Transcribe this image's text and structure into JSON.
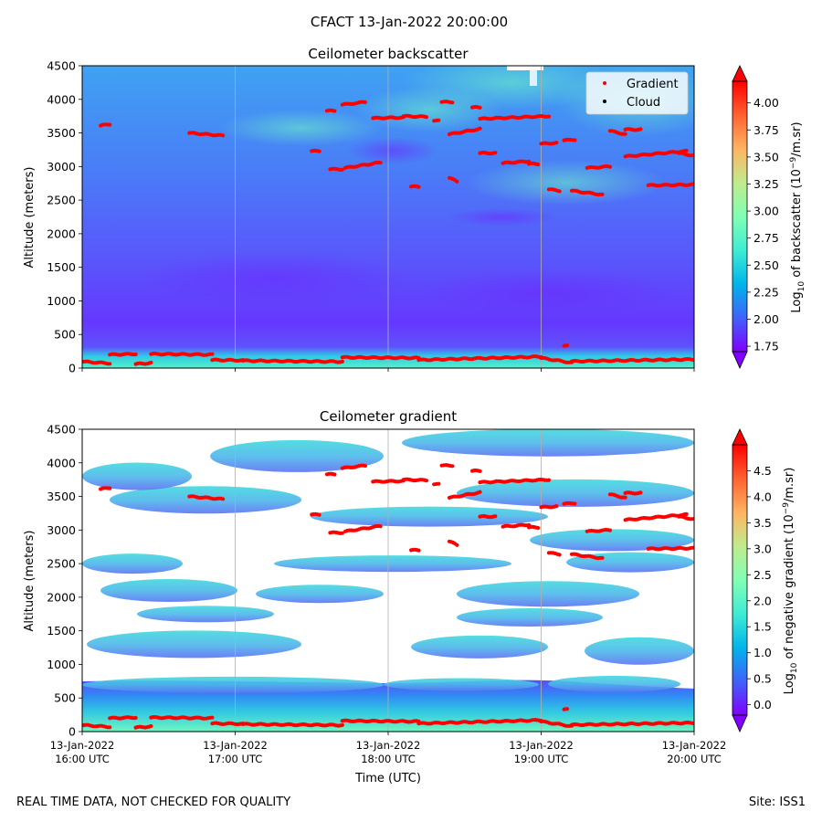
{
  "figure": {
    "suptitle": "CFACT 13-Jan-2022 20:00:00",
    "footer_left": "REAL TIME DATA, NOT CHECKED FOR QUALITY",
    "footer_right": "Site: ISS1"
  },
  "chart_data": [
    {
      "type": "heatmap",
      "title": "Ceilometer backscatter",
      "ylabel": "Altitude (meters)",
      "xlabel": "",
      "ylim": [
        0,
        4500
      ],
      "xlim": [
        0,
        4
      ],
      "y_ticks": [
        "0",
        "500",
        "1000",
        "1500",
        "2000",
        "2500",
        "3000",
        "3500",
        "4000",
        "4500"
      ],
      "x_tick_labels": [],
      "colorbar": {
        "label_prefix": "Log",
        "label_sub": "10",
        "label_mid": " of backscatter (10",
        "label_sup": "−9",
        "label_suffix": "/m.sr)",
        "range": [
          1.7,
          4.2
        ],
        "ticks": [
          "1.75",
          "2.00",
          "2.25",
          "2.50",
          "2.75",
          "3.00",
          "3.25",
          "3.50",
          "3.75",
          "4.00"
        ]
      },
      "legend": {
        "position": "top-right",
        "entries": [
          {
            "label": "Gradient",
            "color": "#ff0000"
          },
          {
            "label": "Cloud",
            "color": "#000000"
          }
        ]
      },
      "gradient_layers": [
        {
          "x": [
            0.01,
            0.18
          ],
          "y": [
            95,
            70
          ]
        },
        {
          "x": [
            0.18,
            0.35
          ],
          "y": [
            200,
            210
          ]
        },
        {
          "x": [
            0.35,
            0.45
          ],
          "y": [
            60,
            75
          ]
        },
        {
          "x": [
            0.45,
            0.85
          ],
          "y": [
            210,
            200
          ]
        },
        {
          "x": [
            0.85,
            1.05
          ],
          "y": [
            120,
            115
          ]
        },
        {
          "x": [
            1.05,
            1.7
          ],
          "y": [
            110,
            95
          ]
        },
        {
          "x": [
            1.7,
            2.2
          ],
          "y": [
            160,
            150
          ]
        },
        {
          "x": [
            2.2,
            3.0
          ],
          "y": [
            120,
            170
          ]
        },
        {
          "x": [
            3.0,
            3.2
          ],
          "y": [
            150,
            80
          ]
        },
        {
          "x": [
            3.2,
            4.0
          ],
          "y": [
            100,
            130
          ]
        },
        {
          "x": [
            3.15,
            3.17
          ],
          "y": [
            330,
            330
          ]
        },
        {
          "x": [
            0.12,
            0.18
          ],
          "y": [
            3610,
            3630
          ]
        },
        {
          "x": [
            0.7,
            0.92
          ],
          "y": [
            3500,
            3460
          ]
        },
        {
          "x": [
            1.5,
            1.55
          ],
          "y": [
            3230,
            3230
          ]
        },
        {
          "x": [
            1.62,
            1.7
          ],
          "y": [
            2960,
            2960
          ]
        },
        {
          "x": [
            1.72,
            1.95
          ],
          "y": [
            2980,
            3060
          ]
        },
        {
          "x": [
            1.6,
            1.65
          ],
          "y": [
            3830,
            3830
          ]
        },
        {
          "x": [
            1.7,
            1.85
          ],
          "y": [
            3920,
            3960
          ]
        },
        {
          "x": [
            1.9,
            2.1
          ],
          "y": [
            3720,
            3730
          ]
        },
        {
          "x": [
            2.1,
            2.25
          ],
          "y": [
            3750,
            3740
          ]
        },
        {
          "x": [
            2.3,
            2.33
          ],
          "y": [
            3680,
            3680
          ]
        },
        {
          "x": [
            2.35,
            2.42
          ],
          "y": [
            3960,
            3960
          ]
        },
        {
          "x": [
            2.4,
            2.6
          ],
          "y": [
            3480,
            3560
          ]
        },
        {
          "x": [
            2.15,
            2.2
          ],
          "y": [
            2700,
            2700
          ]
        },
        {
          "x": [
            2.4,
            2.45
          ],
          "y": [
            2830,
            2780
          ]
        },
        {
          "x": [
            2.55,
            2.6
          ],
          "y": [
            3880,
            3880
          ]
        },
        {
          "x": [
            2.6,
            3.05
          ],
          "y": [
            3710,
            3750
          ]
        },
        {
          "x": [
            2.6,
            2.7
          ],
          "y": [
            3200,
            3200
          ]
        },
        {
          "x": [
            2.75,
            2.92
          ],
          "y": [
            3050,
            3080
          ]
        },
        {
          "x": [
            2.92,
            2.98
          ],
          "y": [
            3040,
            3040
          ]
        },
        {
          "x": [
            3.0,
            3.1
          ],
          "y": [
            3340,
            3350
          ]
        },
        {
          "x": [
            3.05,
            3.12
          ],
          "y": [
            2660,
            2640
          ]
        },
        {
          "x": [
            3.15,
            3.22
          ],
          "y": [
            3390,
            3400
          ]
        },
        {
          "x": [
            3.2,
            3.4
          ],
          "y": [
            2640,
            2580
          ]
        },
        {
          "x": [
            3.3,
            3.45
          ],
          "y": [
            2980,
            3000
          ]
        },
        {
          "x": [
            3.45,
            3.55
          ],
          "y": [
            3530,
            3480
          ]
        },
        {
          "x": [
            3.55,
            3.65
          ],
          "y": [
            3550,
            3550
          ]
        },
        {
          "x": [
            3.55,
            3.95
          ],
          "y": [
            3150,
            3230
          ]
        },
        {
          "x": [
            3.7,
            4.0
          ],
          "y": [
            2720,
            2730
          ]
        },
        {
          "x": [
            3.9,
            4.0
          ],
          "y": [
            3200,
            3160
          ]
        }
      ]
    },
    {
      "type": "heatmap",
      "title": "Ceilometer gradient",
      "ylabel": "Altitude (meters)",
      "xlabel": "Time (UTC)",
      "ylim": [
        0,
        4500
      ],
      "xlim": [
        0,
        4
      ],
      "y_ticks": [
        "0",
        "500",
        "1000",
        "1500",
        "2000",
        "2500",
        "3000",
        "3500",
        "4000",
        "4500"
      ],
      "x_tick_labels": [
        [
          "13-Jan-2022",
          "16:00 UTC"
        ],
        [
          "13-Jan-2022",
          "17:00 UTC"
        ],
        [
          "13-Jan-2022",
          "18:00 UTC"
        ],
        [
          "13-Jan-2022",
          "19:00 UTC"
        ],
        [
          "13-Jan-2022",
          "20:00 UTC"
        ]
      ],
      "colorbar": {
        "label_prefix": "Log",
        "label_sub": "10",
        "label_mid": " of negative gradient (10",
        "label_sup": "−9",
        "label_suffix": "/m.sr)",
        "range": [
          -0.2,
          5.0
        ],
        "ticks": [
          "0.0",
          "0.5",
          "1.0",
          "1.5",
          "2.0",
          "2.5",
          "3.0",
          "3.5",
          "4.0",
          "4.5"
        ]
      },
      "gradient_layers": "same as panel 1"
    }
  ]
}
